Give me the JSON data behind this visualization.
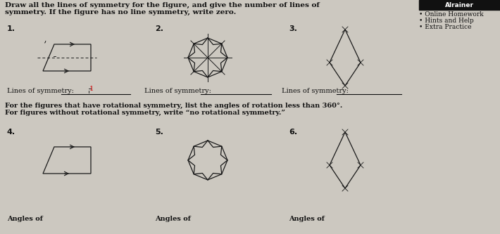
{
  "bg_color": "#ccc8c0",
  "title_text": "Draw all the lines of symmetry for the figure, and give the number of lines of\nsymmetry. If the figure has no line symmetry, write zero.",
  "title_fontsize": 7.5,
  "sidebar_items": [
    "• Online Homework",
    "• Hints and Help",
    "• Extra Practice"
  ],
  "sidebar_fontsize": 6.5,
  "trainer_text": "Alrainer",
  "sec_labels": [
    "1.",
    "2.",
    "3.",
    "4.",
    "5.",
    "6."
  ],
  "lines_sym_text": "Lines of symmetry:",
  "lines_sym_answer": "1",
  "rot_instruction": "For the figures that have rotational symmetry, list the angles of rotation less than 360°.\nFor figures without rotational symmetry, write “no rotational symmetry.”",
  "angles_text": "Angles of",
  "label_fontsize": 8,
  "small_fontsize": 7,
  "shape_color": "#1a1a1a",
  "red_color": "#cc0000",
  "lw": 0.9
}
